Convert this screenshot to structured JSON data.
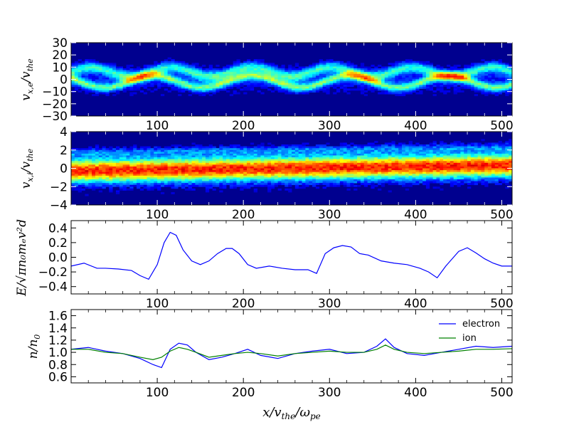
{
  "chart_data": [
    {
      "type": "heatmap",
      "panel": "electron-phase-space",
      "ylabel": "v_x,e / v_the",
      "ylabel_display": "v",
      "ylabel_sub": "x,e",
      "ylabel_den": "/v",
      "ylabel_den_sub": "the",
      "xlim": [
        0,
        512
      ],
      "ylim": [
        -30,
        30
      ],
      "xticks": [
        100,
        200,
        300,
        400,
        500
      ],
      "xtick_labels": [
        "100",
        "200",
        "300",
        "400",
        "500"
      ],
      "yticks": [
        30,
        20,
        10,
        0,
        -10,
        -20,
        -30
      ],
      "ytick_labels": [
        "30",
        "20",
        "10",
        "0",
        "−10",
        "−20",
        "−30"
      ],
      "colormap": "jet"
    },
    {
      "type": "heatmap",
      "panel": "ion-phase-space",
      "ylabel": "v_x,i / v_the",
      "ylabel_display": "v",
      "ylabel_sub": "x,i",
      "ylabel_den": "/v",
      "ylabel_den_sub": "the",
      "xlim": [
        0,
        512
      ],
      "ylim": [
        -4,
        4
      ],
      "xticks": [
        100,
        200,
        300,
        400,
        500
      ],
      "xtick_labels": [
        "100",
        "200",
        "300",
        "400",
        "500"
      ],
      "yticks": [
        4,
        2,
        0,
        -2,
        -4
      ],
      "ytick_labels": [
        "4",
        "2",
        "0",
        "−2",
        "−4"
      ],
      "colormap": "jet"
    },
    {
      "type": "line",
      "panel": "electric-field",
      "ylabel": "E / sqrt(pi n0 me vd^2)",
      "ylabel_display": "E/√πn₀mₑv²d",
      "xlim": [
        0,
        512
      ],
      "ylim": [
        -0.5,
        0.5
      ],
      "xticks": [
        100,
        200,
        300,
        400,
        500
      ],
      "xtick_labels": [
        "100",
        "200",
        "300",
        "400",
        "500"
      ],
      "yticks": [
        0.4,
        0.2,
        0.0,
        -0.2,
        -0.4
      ],
      "ytick_labels": [
        "0.4",
        "0.2",
        "0.0",
        "−0.2",
        "−0.4"
      ],
      "series": [
        {
          "color": "#0000ff",
          "x": [
            0,
            15,
            30,
            40,
            55,
            70,
            80,
            90,
            100,
            108,
            115,
            122,
            130,
            140,
            150,
            160,
            170,
            180,
            187,
            195,
            205,
            215,
            230,
            245,
            260,
            275,
            285,
            295,
            305,
            315,
            325,
            335,
            345,
            360,
            375,
            390,
            405,
            415,
            425,
            435,
            450,
            460,
            470,
            480,
            490,
            500,
            512
          ],
          "y": [
            -0.12,
            -0.08,
            -0.15,
            -0.15,
            -0.16,
            -0.18,
            -0.25,
            -0.3,
            -0.1,
            0.2,
            0.34,
            0.3,
            0.1,
            -0.05,
            -0.1,
            -0.05,
            0.05,
            0.12,
            0.12,
            0.05,
            -0.1,
            -0.15,
            -0.12,
            -0.15,
            -0.17,
            -0.17,
            -0.22,
            0.05,
            0.13,
            0.16,
            0.14,
            0.05,
            0.03,
            -0.05,
            -0.08,
            -0.1,
            -0.15,
            -0.2,
            -0.28,
            -0.12,
            0.08,
            0.13,
            0.06,
            -0.02,
            -0.08,
            -0.12,
            -0.12
          ]
        }
      ]
    },
    {
      "type": "line",
      "panel": "density",
      "ylabel": "n / n0",
      "ylabel_display": "n/n",
      "ylabel_sub": "0",
      "xlabel": "x / v_the / omega_pe",
      "xlim": [
        0,
        512
      ],
      "ylim": [
        0.5,
        1.7
      ],
      "xticks": [
        100,
        200,
        300,
        400,
        500
      ],
      "xtick_labels": [
        "100",
        "200",
        "300",
        "400",
        "500"
      ],
      "yticks": [
        1.6,
        1.4,
        1.2,
        1.0,
        0.8,
        0.6
      ],
      "ytick_labels": [
        "1.6",
        "1.4",
        "1.2",
        "1.0",
        "0.8",
        "0.6"
      ],
      "legend_position": "top-right",
      "series": [
        {
          "name": "electron",
          "color": "#0000ff",
          "x": [
            0,
            20,
            40,
            60,
            80,
            95,
            105,
            115,
            125,
            135,
            145,
            160,
            175,
            190,
            205,
            220,
            240,
            260,
            280,
            300,
            320,
            340,
            355,
            365,
            375,
            390,
            410,
            430,
            450,
            470,
            490,
            512
          ],
          "y": [
            1.05,
            1.08,
            1.02,
            0.98,
            0.9,
            0.8,
            0.75,
            1.05,
            1.15,
            1.12,
            1.0,
            0.88,
            0.92,
            0.98,
            1.05,
            0.95,
            0.9,
            0.98,
            1.02,
            1.05,
            0.98,
            1.0,
            1.1,
            1.22,
            1.08,
            0.98,
            0.95,
            1.0,
            1.05,
            1.1,
            1.08,
            1.1
          ]
        },
        {
          "name": "ion",
          "color": "#008000",
          "x": [
            0,
            20,
            40,
            60,
            80,
            95,
            105,
            115,
            125,
            135,
            145,
            160,
            175,
            190,
            205,
            220,
            240,
            260,
            280,
            300,
            320,
            340,
            355,
            365,
            375,
            390,
            410,
            430,
            450,
            470,
            490,
            512
          ],
          "y": [
            1.05,
            1.05,
            1.0,
            0.98,
            0.92,
            0.88,
            0.92,
            1.02,
            1.08,
            1.05,
            1.0,
            0.92,
            0.95,
            0.98,
            1.0,
            0.98,
            0.94,
            0.98,
            1.0,
            1.02,
            1.0,
            1.0,
            1.05,
            1.12,
            1.05,
            1.0,
            0.98,
            1.0,
            1.02,
            1.05,
            1.05,
            1.06
          ]
        }
      ]
    }
  ],
  "xlabel_display": "x/v",
  "xlabel_sub1": "the",
  "xlabel_mid": "/ω",
  "xlabel_sub2": "pe",
  "colors": {
    "electron": "#0000ff",
    "ion": "#008000",
    "heatmap_bg": "#00008f"
  }
}
